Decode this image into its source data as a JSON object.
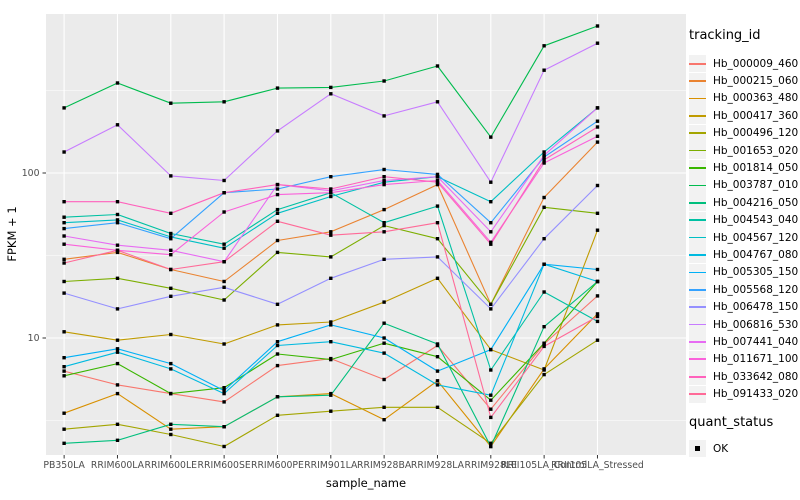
{
  "chart_data": {
    "type": "line",
    "title": "",
    "xlabel": "sample_name",
    "ylabel": "FPKM + 1",
    "y_scale": "log10",
    "y_ticks": [
      {
        "value": 10,
        "label": "10"
      },
      {
        "value": 100,
        "label": "100"
      }
    ],
    "y_minor_ticks": [
      3.162,
      31.62,
      316.2
    ],
    "ylim": [
      1.95,
      920
    ],
    "grid": true,
    "legend_position": "right",
    "x_categories": [
      "PB350LA",
      "RRIM600LA",
      "RRIM600LE",
      "RRIM600SE",
      "RRIM600PE",
      "RRIM901LA",
      "RRIM928BA",
      "RRIM928LA",
      "RRIM928LE",
      "RRII105LA_Control",
      "RRII105LA_Stressed"
    ],
    "series": [
      {
        "id": "Hb_000009_460",
        "color": "#F8766D",
        "values": [
          6.3,
          5.2,
          4.6,
          4.1,
          6.8,
          7.5,
          5.6,
          9.0,
          3.7,
          9.2,
          18
        ]
      },
      {
        "id": "Hb_000215_060",
        "color": "#EA8331",
        "values": [
          30,
          33,
          26,
          22,
          39,
          44,
          60,
          85,
          16,
          71,
          154
        ]
      },
      {
        "id": "Hb_000363_480",
        "color": "#D89000",
        "values": [
          3.5,
          4.6,
          2.8,
          2.9,
          4.4,
          4.6,
          3.2,
          5.5,
          2.2,
          6.5,
          14
        ]
      },
      {
        "id": "Hb_000417_360",
        "color": "#C09B00",
        "values": [
          10.9,
          9.7,
          10.5,
          9.2,
          12,
          12.5,
          16.5,
          23,
          8.5,
          6.4,
          45
        ]
      },
      {
        "id": "Hb_000496_120",
        "color": "#A3A500",
        "values": [
          2.8,
          3.0,
          2.6,
          2.2,
          3.4,
          3.6,
          3.8,
          3.8,
          2.3,
          6.0,
          9.7
        ]
      },
      {
        "id": "Hb_001653_020",
        "color": "#7CAE00",
        "values": [
          22,
          23,
          20,
          17,
          33,
          31,
          48,
          40,
          16,
          62,
          57
        ]
      },
      {
        "id": "Hb_001814_050",
        "color": "#39B600",
        "values": [
          5.9,
          7.0,
          4.6,
          5.0,
          8.0,
          7.4,
          9.3,
          7.7,
          4.2,
          9.3,
          22
        ]
      },
      {
        "id": "Hb_003787_010",
        "color": "#00BB4E",
        "values": [
          248,
          351,
          265,
          270,
          327,
          330,
          361,
          445,
          165,
          590,
          778
        ]
      },
      {
        "id": "Hb_004216_050",
        "color": "#00BF7D",
        "values": [
          2.3,
          2.4,
          3.0,
          2.9,
          4.4,
          4.5,
          12.3,
          9.2,
          2.2,
          11.7,
          22
        ]
      },
      {
        "id": "Hb_004543_040",
        "color": "#00C1A3",
        "values": [
          54,
          56,
          43,
          37,
          60,
          76,
          50,
          63,
          6.4,
          19,
          12.6
        ]
      },
      {
        "id": "Hb_004567_120",
        "color": "#00BFC4",
        "values": [
          50,
          52,
          41,
          35,
          57,
          72,
          88,
          95,
          67,
          134,
          248
        ]
      },
      {
        "id": "Hb_004767_080",
        "color": "#00BAE0",
        "values": [
          6.7,
          8.2,
          6.5,
          4.6,
          9.0,
          9.5,
          8.1,
          5.2,
          4.5,
          28,
          22
        ]
      },
      {
        "id": "Hb_005305_150",
        "color": "#00B0F6",
        "values": [
          7.6,
          8.6,
          7.0,
          4.8,
          9.5,
          12,
          10,
          6.3,
          8.5,
          28,
          26
        ]
      },
      {
        "id": "Hb_005568_120",
        "color": "#35A2FF",
        "values": [
          46,
          50,
          40,
          76,
          80,
          95,
          105,
          98,
          50,
          125,
          206
        ]
      },
      {
        "id": "Hb_006478_150",
        "color": "#9590FF",
        "values": [
          18.7,
          15,
          17.9,
          20.3,
          16,
          23,
          30,
          31,
          15,
          40,
          84
        ]
      },
      {
        "id": "Hb_006816_530",
        "color": "#C77CFF",
        "values": [
          134,
          196,
          96,
          90,
          180,
          302,
          222,
          270,
          88,
          420,
          612
        ]
      },
      {
        "id": "Hb_007441_040",
        "color": "#E76BF3",
        "values": [
          41.5,
          36.5,
          34,
          29,
          85,
          78,
          90,
          95,
          44,
          128,
          248
        ]
      },
      {
        "id": "Hb_011671_100",
        "color": "#FA62DB",
        "values": [
          37,
          34,
          32,
          58,
          74,
          76,
          85,
          90,
          38,
          115,
          167
        ]
      },
      {
        "id": "Hb_033642_080",
        "color": "#FF62BC",
        "values": [
          67,
          67,
          57,
          76,
          85,
          80,
          95,
          88,
          37,
          120,
          190
        ]
      },
      {
        "id": "Hb_091433_020",
        "color": "#FF6A98",
        "values": [
          28.5,
          34,
          26,
          29,
          51,
          42,
          44,
          50,
          3.3,
          8.9,
          13.5
        ]
      }
    ],
    "legend": {
      "color_title": "tracking_id",
      "shape_title": "quant_status",
      "shape_items": [
        {
          "label": "OK"
        }
      ]
    },
    "theme": {
      "panel_bg": "#EBEBEB",
      "grid": "#FFFFFF",
      "tick_text": "#4D4D4D",
      "tick_mark": "#333333",
      "point_color": "#000000",
      "legend_key_bg": "#F2F2F2"
    }
  }
}
